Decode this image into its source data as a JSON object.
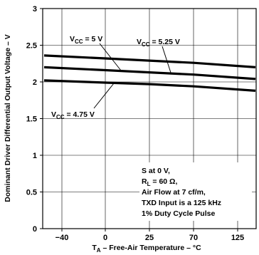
{
  "chart_data": {
    "type": "line",
    "title": "",
    "xlabel_main": "T",
    "xlabel_sub": "A",
    "xlabel_rest": " – Free-Air Temperature – °C",
    "ylabel": "Dominant Driver Differential Output Voltage – V",
    "x_categories": [
      "−40",
      "0",
      "25",
      "70",
      "125"
    ],
    "y_ticks": [
      "0",
      "0.5",
      "1",
      "1.5",
      "2",
      "2.5",
      "3"
    ],
    "ylim": [
      0,
      3
    ],
    "grid": true,
    "series": [
      {
        "name_main": "V",
        "name_sub": "CC",
        "name_rest": " = 5.25 V",
        "values": [
          2.36,
          2.32,
          2.29,
          2.26,
          2.2
        ]
      },
      {
        "name_main": "V",
        "name_sub": "CC",
        "name_rest": " = 5 V",
        "values": [
          2.2,
          2.16,
          2.13,
          2.1,
          2.04
        ]
      },
      {
        "name_main": "V",
        "name_sub": "CC",
        "name_rest": " = 4.75 V",
        "values": [
          2.02,
          1.99,
          1.97,
          1.94,
          1.88
        ]
      }
    ],
    "annotation": {
      "line1": "S at 0 V,",
      "line2_main": "R",
      "line2_sub": "L",
      "line2_rest": " = 60 Ω,",
      "line3": "Air Flow at 7 cf/m,",
      "line4": "TXD Input is a 125 kHz",
      "line5": "1% Duty Cycle Pulse"
    }
  }
}
